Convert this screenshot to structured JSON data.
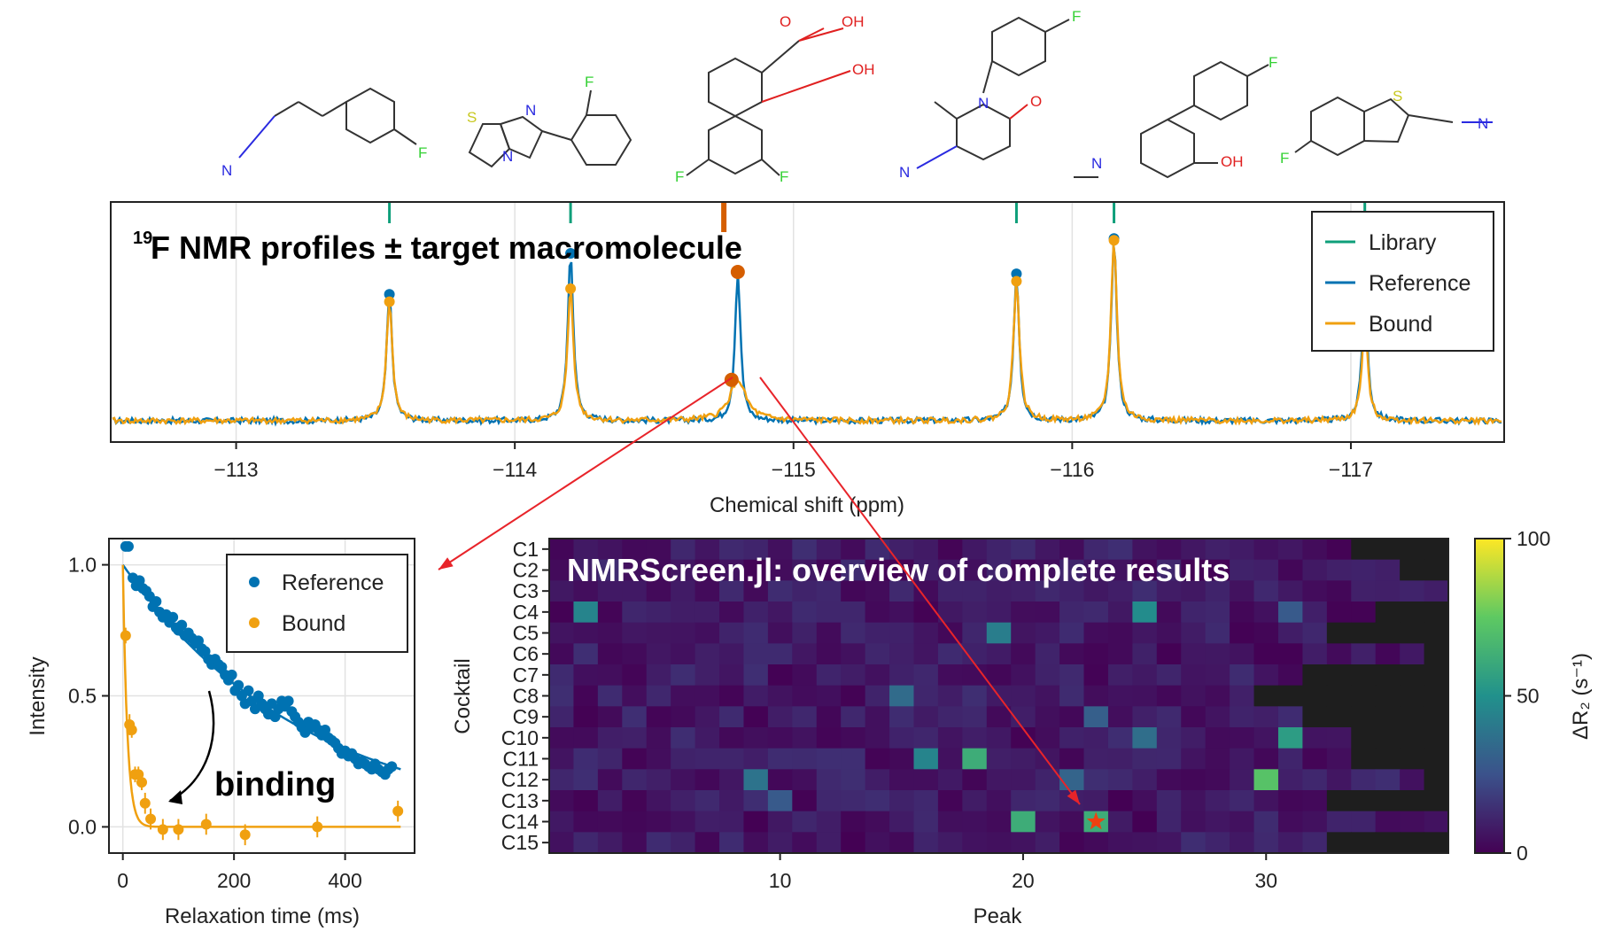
{
  "colors": {
    "library": "#0e9f7a",
    "reference": "#0072b2",
    "bound": "#f0a010",
    "highlight": "#d55e00",
    "arrow": "#e8242a",
    "atom_N": "#2a2ae0",
    "atom_O": "#e02020",
    "atom_F": "#35d135",
    "atom_S": "#c8c820"
  },
  "molecules": [
    {
      "atoms": [
        "N",
        "F"
      ]
    },
    {
      "atoms": [
        "S",
        "N",
        "N",
        "F"
      ]
    },
    {
      "atoms": [
        "O",
        "OH",
        "OH",
        "F",
        "F"
      ]
    },
    {
      "atoms": [
        "F",
        "N",
        "O",
        "N"
      ]
    },
    {
      "atoms": [
        "F",
        "N",
        "OH"
      ]
    },
    {
      "atoms": [
        "S",
        "N",
        "F"
      ]
    }
  ],
  "chart_data": [
    {
      "type": "line",
      "title_sup": "19",
      "title": "F NMR profiles ± target macromolecule",
      "xlabel": "Chemical shift (ppm)",
      "x_reversed": true,
      "xlim": [
        -112.55,
        -117.55
      ],
      "xticks": [
        -113,
        -114,
        -115,
        -116,
        -117
      ],
      "xtick_labels": [
        "−113",
        "−114",
        "−115",
        "−116",
        "−117"
      ],
      "grid": true,
      "legend": {
        "position": "top-right",
        "entries": [
          "Library",
          "Reference",
          "Bound"
        ]
      },
      "library_shifts": [
        -113.55,
        -114.2,
        -115.8,
        -116.15,
        -117.05
      ],
      "highlight_shift": -114.75,
      "peaks": [
        {
          "shift": -113.55,
          "reference": 0.68,
          "bound": 0.64
        },
        {
          "shift": -114.2,
          "reference": 0.9,
          "bound": 0.71
        },
        {
          "shift": -114.8,
          "reference": 0.8,
          "bound": 0.22
        },
        {
          "shift": -115.8,
          "reference": 0.79,
          "bound": 0.75
        },
        {
          "shift": -116.15,
          "reference": 0.98,
          "bound": 0.97
        },
        {
          "shift": -117.05,
          "reference": 0.68,
          "bound": 0.52
        }
      ]
    },
    {
      "type": "scatter",
      "xlabel": "Relaxation time (ms)",
      "ylabel": "Intensity",
      "xlim": [
        -25,
        525
      ],
      "ylim": [
        -0.1,
        1.1
      ],
      "xticks": [
        0,
        200,
        400
      ],
      "yticks": [
        0.0,
        0.5,
        1.0
      ],
      "ytick_labels": [
        "0.0",
        "0.5",
        "1.0"
      ],
      "grid": true,
      "legend": {
        "position": "top-right",
        "entries": [
          "Reference",
          "Bound"
        ]
      },
      "annotation": "binding",
      "reference_points": [
        [
          5,
          1.07
        ],
        [
          10,
          1.07
        ],
        [
          18,
          0.95
        ],
        [
          24,
          0.92
        ],
        [
          30,
          0.94
        ],
        [
          36,
          0.91
        ],
        [
          42,
          0.9
        ],
        [
          48,
          0.88
        ],
        [
          54,
          0.84
        ],
        [
          60,
          0.86
        ],
        [
          66,
          0.82
        ],
        [
          72,
          0.8
        ],
        [
          78,
          0.81
        ],
        [
          84,
          0.78
        ],
        [
          90,
          0.8
        ],
        [
          96,
          0.76
        ],
        [
          100,
          0.75
        ],
        [
          106,
          0.77
        ],
        [
          112,
          0.73
        ],
        [
          118,
          0.74
        ],
        [
          124,
          0.72
        ],
        [
          130,
          0.7
        ],
        [
          136,
          0.71
        ],
        [
          142,
          0.68
        ],
        [
          148,
          0.67
        ],
        [
          154,
          0.64
        ],
        [
          160,
          0.62
        ],
        [
          166,
          0.64
        ],
        [
          172,
          0.62
        ],
        [
          178,
          0.61
        ],
        [
          184,
          0.58
        ],
        [
          190,
          0.56
        ],
        [
          196,
          0.58
        ],
        [
          202,
          0.52
        ],
        [
          208,
          0.54
        ],
        [
          214,
          0.5
        ],
        [
          220,
          0.47
        ],
        [
          226,
          0.52
        ],
        [
          232,
          0.48
        ],
        [
          238,
          0.45
        ],
        [
          244,
          0.5
        ],
        [
          250,
          0.47
        ],
        [
          256,
          0.45
        ],
        [
          262,
          0.43
        ],
        [
          268,
          0.47
        ],
        [
          274,
          0.42
        ],
        [
          280,
          0.45
        ],
        [
          286,
          0.48
        ],
        [
          292,
          0.46
        ],
        [
          298,
          0.48
        ],
        [
          304,
          0.44
        ],
        [
          310,
          0.42
        ],
        [
          316,
          0.4
        ],
        [
          322,
          0.38
        ],
        [
          328,
          0.36
        ],
        [
          334,
          0.4
        ],
        [
          340,
          0.38
        ],
        [
          346,
          0.39
        ],
        [
          352,
          0.37
        ],
        [
          358,
          0.35
        ],
        [
          364,
          0.37
        ],
        [
          370,
          0.34
        ],
        [
          376,
          0.33
        ],
        [
          382,
          0.32
        ],
        [
          388,
          0.3
        ],
        [
          394,
          0.28
        ],
        [
          400,
          0.29
        ],
        [
          406,
          0.27
        ],
        [
          412,
          0.28
        ],
        [
          418,
          0.26
        ],
        [
          424,
          0.24
        ],
        [
          430,
          0.25
        ],
        [
          436,
          0.24
        ],
        [
          442,
          0.23
        ],
        [
          448,
          0.22
        ],
        [
          454,
          0.24
        ],
        [
          460,
          0.22
        ],
        [
          466,
          0.21
        ],
        [
          472,
          0.2
        ],
        [
          478,
          0.22
        ],
        [
          484,
          0.23
        ]
      ],
      "bound_points": [
        [
          5,
          0.73
        ],
        [
          12,
          0.39
        ],
        [
          16,
          0.37
        ],
        [
          22,
          0.2
        ],
        [
          28,
          0.2
        ],
        [
          34,
          0.17
        ],
        [
          40,
          0.09
        ],
        [
          50,
          0.03
        ],
        [
          72,
          -0.01
        ],
        [
          100,
          -0.01
        ],
        [
          150,
          0.01
        ],
        [
          220,
          -0.03
        ],
        [
          350,
          0.0
        ],
        [
          495,
          0.06
        ]
      ],
      "bound_errors": [
        0.03,
        0.04,
        0.03,
        0.03,
        0.03,
        0.03,
        0.04,
        0.04,
        0.04,
        0.04,
        0.04,
        0.04,
        0.04,
        0.04
      ],
      "reference_fit": {
        "model": "exp",
        "a": 1.0,
        "tau_ms": 330
      },
      "bound_fit": {
        "model": "exp",
        "a": 1.0,
        "tau_ms": 8
      }
    },
    {
      "type": "heatmap",
      "title": "NMRScreen.jl: overview of complete results",
      "xlabel": "Peak",
      "ylabel": "Cocktail",
      "xticks": [
        10,
        20,
        30
      ],
      "row_labels": [
        "C1",
        "C2",
        "C3",
        "C4",
        "C5",
        "C6",
        "C7",
        "C8",
        "C9",
        "C10",
        "C11",
        "C12",
        "C13",
        "C14",
        "C15"
      ],
      "columns": 37,
      "colorbar": {
        "label": "ΔR₂ (s⁻¹)",
        "min": 0,
        "max": 100,
        "ticks": [
          0,
          50,
          100
        ]
      },
      "peaks_per_cocktail": [
        33,
        35,
        37,
        34,
        32,
        36,
        31,
        29,
        31,
        33,
        33,
        36,
        32,
        37,
        32
      ],
      "highlight": {
        "cocktail": "C14",
        "peak": 23
      },
      "high_values": [
        {
          "row": "C4",
          "peak": 2,
          "value": 45
        },
        {
          "row": "C4",
          "peak": 25,
          "value": 48
        },
        {
          "row": "C4",
          "peak": 31,
          "value": 28
        },
        {
          "row": "C5",
          "peak": 19,
          "value": 42
        },
        {
          "row": "C8",
          "peak": 15,
          "value": 35
        },
        {
          "row": "C9",
          "peak": 23,
          "value": 30
        },
        {
          "row": "C10",
          "peak": 25,
          "value": 36
        },
        {
          "row": "C10",
          "peak": 31,
          "value": 55
        },
        {
          "row": "C11",
          "peak": 16,
          "value": 45
        },
        {
          "row": "C11",
          "peak": 18,
          "value": 62
        },
        {
          "row": "C12",
          "peak": 9,
          "value": 38
        },
        {
          "row": "C12",
          "peak": 22,
          "value": 32
        },
        {
          "row": "C12",
          "peak": 30,
          "value": 72
        },
        {
          "row": "C13",
          "peak": 10,
          "value": 28
        },
        {
          "row": "C14",
          "peak": 20,
          "value": 62
        },
        {
          "row": "C14",
          "peak": 23,
          "value": 62
        }
      ]
    }
  ]
}
